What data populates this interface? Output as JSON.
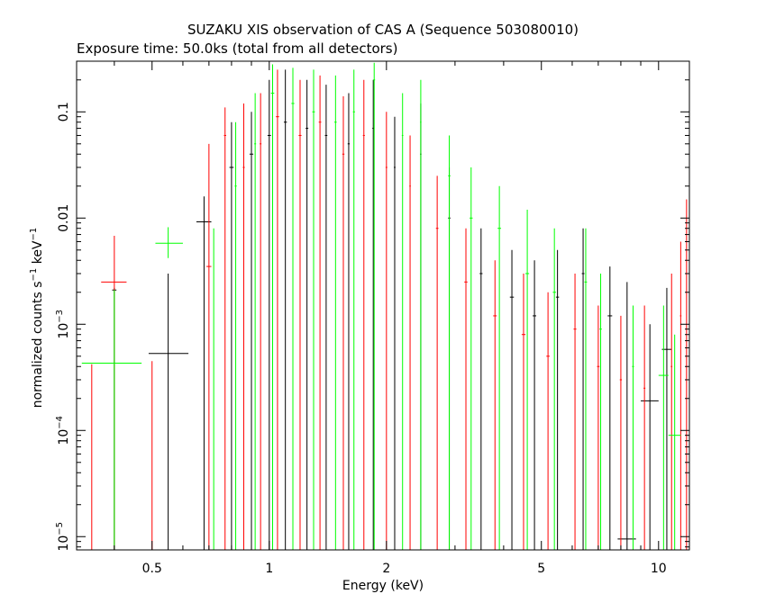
{
  "chart_data": {
    "type": "scatter",
    "title": "SUZAKU XIS observation of CAS A (Sequence 503080010)",
    "subtitle": "Exposure time: 50.0ks (total from all detectors)",
    "xlabel": "Energy (keV)",
    "ylabel": "normalized counts s",
    "ylabel_sup1": "−1",
    "ylabel_mid": " keV",
    "ylabel_sup2": "−1",
    "x_scale": "log",
    "y_scale": "log",
    "xlim": [
      0.32,
      12.0
    ],
    "ylim": [
      7.5e-06,
      0.3
    ],
    "x_ticks": [
      {
        "value": 0.5,
        "label": "0.5"
      },
      {
        "value": 1,
        "label": "1"
      },
      {
        "value": 2,
        "label": "2"
      },
      {
        "value": 5,
        "label": "5"
      },
      {
        "value": 10,
        "label": "10"
      }
    ],
    "y_ticks": [
      {
        "value": 0.1,
        "base": "0.1",
        "exp": ""
      },
      {
        "value": 0.01,
        "base": "0.01",
        "exp": ""
      },
      {
        "value": 0.001,
        "base": "10",
        "exp": "−3"
      },
      {
        "value": 0.0001,
        "base": "10",
        "exp": "−4"
      },
      {
        "value": 1e-05,
        "base": "10",
        "exp": "−5"
      }
    ],
    "grid": false,
    "colors": {
      "black": "#000000",
      "red": "#ff0000",
      "green": "#00ff00"
    },
    "series": [
      {
        "color": "#000000",
        "points": [
          {
            "x": 0.4,
            "y": 0.0021,
            "xlo": 0.395,
            "xhi": 0.405,
            "ylo": 7.5e-06,
            "yhi": 0.0022
          },
          {
            "x": 0.55,
            "y": 0.00053,
            "xlo": 0.49,
            "xhi": 0.62,
            "ylo": 7.5e-06,
            "yhi": 0.003
          },
          {
            "x": 0.68,
            "y": 0.0092,
            "xlo": 0.65,
            "xhi": 0.71,
            "ylo": 7.5e-06,
            "yhi": 0.016
          },
          {
            "x": 0.8,
            "y": 0.03,
            "xlo": 0.79,
            "xhi": 0.81,
            "ylo": 7.5e-06,
            "yhi": 0.08
          },
          {
            "x": 0.9,
            "y": 0.04,
            "xlo": 0.89,
            "xhi": 0.91,
            "ylo": 7.5e-06,
            "yhi": 0.1
          },
          {
            "x": 1.0,
            "y": 0.06,
            "xlo": 0.99,
            "xhi": 1.01,
            "ylo": 7.5e-06,
            "yhi": 0.2
          },
          {
            "x": 1.1,
            "y": 0.08,
            "xlo": 1.09,
            "xhi": 1.11,
            "ylo": 7.5e-06,
            "yhi": 0.25
          },
          {
            "x": 1.25,
            "y": 0.07,
            "xlo": 1.24,
            "xhi": 1.26,
            "ylo": 7.5e-06,
            "yhi": 0.2
          },
          {
            "x": 1.4,
            "y": 0.06,
            "xlo": 1.39,
            "xhi": 1.41,
            "ylo": 7.5e-06,
            "yhi": 0.18
          },
          {
            "x": 1.6,
            "y": 0.05,
            "xlo": 1.59,
            "xhi": 1.61,
            "ylo": 7.5e-06,
            "yhi": 0.15
          },
          {
            "x": 1.85,
            "y": 0.07,
            "xlo": 1.84,
            "xhi": 1.86,
            "ylo": 7.5e-06,
            "yhi": 0.2
          },
          {
            "x": 2.1,
            "y": 0.03,
            "xlo": 2.09,
            "xhi": 2.11,
            "ylo": 7.5e-06,
            "yhi": 0.09
          },
          {
            "x": 2.45,
            "y": 0.04,
            "xlo": 2.44,
            "xhi": 2.46,
            "ylo": 7.5e-06,
            "yhi": 0.12
          },
          {
            "x": 2.9,
            "y": 0.01,
            "xlo": 2.88,
            "xhi": 2.92,
            "ylo": 7.5e-06,
            "yhi": 0.03
          },
          {
            "x": 3.5,
            "y": 0.003,
            "xlo": 3.47,
            "xhi": 3.53,
            "ylo": 7.5e-06,
            "yhi": 0.008
          },
          {
            "x": 4.2,
            "y": 0.0018,
            "xlo": 4.15,
            "xhi": 4.25,
            "ylo": 7.5e-06,
            "yhi": 0.005
          },
          {
            "x": 4.8,
            "y": 0.0012,
            "xlo": 4.75,
            "xhi": 4.85,
            "ylo": 7.5e-06,
            "yhi": 0.004
          },
          {
            "x": 5.5,
            "y": 0.0018,
            "xlo": 5.45,
            "xhi": 5.55,
            "ylo": 7.5e-06,
            "yhi": 0.005
          },
          {
            "x": 6.4,
            "y": 0.003,
            "xlo": 6.35,
            "xhi": 6.45,
            "ylo": 7.5e-06,
            "yhi": 0.008
          },
          {
            "x": 7.5,
            "y": 0.0012,
            "xlo": 7.4,
            "xhi": 7.6,
            "ylo": 7.5e-06,
            "yhi": 0.0035
          },
          {
            "x": 8.3,
            "y": 9.5e-06,
            "xlo": 7.85,
            "xhi": 8.75,
            "ylo": 7.5e-06,
            "yhi": 0.0025
          },
          {
            "x": 9.5,
            "y": 0.00019,
            "xlo": 9.0,
            "xhi": 10.0,
            "ylo": 7.5e-06,
            "yhi": 0.001
          },
          {
            "x": 10.5,
            "y": 0.00058,
            "xlo": 10.2,
            "xhi": 10.8,
            "ylo": 7.5e-06,
            "yhi": 0.0022
          }
        ]
      },
      {
        "color": "#ff0000",
        "points": [
          {
            "x": 0.35,
            "y": 7.5e-06,
            "xlo": 0.349,
            "xhi": 0.351,
            "ylo": 7.5e-06,
            "yhi": 0.00042
          },
          {
            "x": 0.4,
            "y": 0.0025,
            "xlo": 0.37,
            "xhi": 0.43,
            "ylo": 7.5e-06,
            "yhi": 0.0068
          },
          {
            "x": 0.5,
            "y": 7.5e-06,
            "xlo": 0.499,
            "xhi": 0.501,
            "ylo": 7.5e-06,
            "yhi": 0.00045
          },
          {
            "x": 0.7,
            "y": 0.0035,
            "xlo": 0.69,
            "xhi": 0.71,
            "ylo": 7.5e-06,
            "yhi": 0.05
          },
          {
            "x": 0.77,
            "y": 0.06,
            "xlo": 0.765,
            "xhi": 0.775,
            "ylo": 7.5e-06,
            "yhi": 0.11
          },
          {
            "x": 0.86,
            "y": 0.03,
            "xlo": 0.855,
            "xhi": 0.865,
            "ylo": 7.5e-06,
            "yhi": 0.12
          },
          {
            "x": 0.95,
            "y": 0.05,
            "xlo": 0.945,
            "xhi": 0.955,
            "ylo": 7.5e-06,
            "yhi": 0.15
          },
          {
            "x": 1.05,
            "y": 0.09,
            "xlo": 1.04,
            "xhi": 1.06,
            "ylo": 7.5e-06,
            "yhi": 0.25
          },
          {
            "x": 1.2,
            "y": 0.06,
            "xlo": 1.19,
            "xhi": 1.21,
            "ylo": 7.5e-06,
            "yhi": 0.2
          },
          {
            "x": 1.35,
            "y": 0.08,
            "xlo": 1.34,
            "xhi": 1.36,
            "ylo": 7.5e-06,
            "yhi": 0.22
          },
          {
            "x": 1.55,
            "y": 0.04,
            "xlo": 1.54,
            "xhi": 1.56,
            "ylo": 7.5e-06,
            "yhi": 0.14
          },
          {
            "x": 1.75,
            "y": 0.06,
            "xlo": 1.74,
            "xhi": 1.76,
            "ylo": 7.5e-06,
            "yhi": 0.2
          },
          {
            "x": 2.0,
            "y": 0.03,
            "xlo": 1.99,
            "xhi": 2.01,
            "ylo": 7.5e-06,
            "yhi": 0.1
          },
          {
            "x": 2.3,
            "y": 0.02,
            "xlo": 2.29,
            "xhi": 2.31,
            "ylo": 7.5e-06,
            "yhi": 0.06
          },
          {
            "x": 2.7,
            "y": 0.008,
            "xlo": 2.68,
            "xhi": 2.72,
            "ylo": 7.5e-06,
            "yhi": 0.025
          },
          {
            "x": 3.2,
            "y": 0.0025,
            "xlo": 3.17,
            "xhi": 3.23,
            "ylo": 7.5e-06,
            "yhi": 0.008
          },
          {
            "x": 3.8,
            "y": 0.0012,
            "xlo": 3.76,
            "xhi": 3.84,
            "ylo": 7.5e-06,
            "yhi": 0.004
          },
          {
            "x": 4.5,
            "y": 0.0008,
            "xlo": 4.45,
            "xhi": 4.55,
            "ylo": 7.5e-06,
            "yhi": 0.003
          },
          {
            "x": 5.2,
            "y": 0.0005,
            "xlo": 5.15,
            "xhi": 5.25,
            "ylo": 7.5e-06,
            "yhi": 0.002
          },
          {
            "x": 6.1,
            "y": 0.0009,
            "xlo": 6.05,
            "xhi": 6.15,
            "ylo": 7.5e-06,
            "yhi": 0.003
          },
          {
            "x": 7.0,
            "y": 0.0004,
            "xlo": 6.95,
            "xhi": 7.05,
            "ylo": 7.5e-06,
            "yhi": 0.0015
          },
          {
            "x": 8.0,
            "y": 0.0003,
            "xlo": 7.95,
            "xhi": 8.05,
            "ylo": 7.5e-06,
            "yhi": 0.0012
          },
          {
            "x": 9.2,
            "y": 0.00025,
            "xlo": 9.15,
            "xhi": 9.25,
            "ylo": 7.5e-06,
            "yhi": 0.0015
          },
          {
            "x": 10.8,
            "y": 0.0004,
            "xlo": 10.75,
            "xhi": 10.85,
            "ylo": 7.5e-06,
            "yhi": 0.003
          },
          {
            "x": 11.4,
            "y": 0.0012,
            "xlo": 11.35,
            "xhi": 11.45,
            "ylo": 7.5e-06,
            "yhi": 0.006
          },
          {
            "x": 11.8,
            "y": 0.003,
            "xlo": 11.75,
            "xhi": 11.85,
            "ylo": 7.5e-06,
            "yhi": 0.015
          }
        ]
      },
      {
        "color": "#00ff00",
        "points": [
          {
            "x": 0.4,
            "y": 0.00043,
            "xlo": 0.33,
            "xhi": 0.47,
            "ylo": 7.5e-06,
            "yhi": 0.0021
          },
          {
            "x": 0.55,
            "y": 0.0058,
            "xlo": 0.51,
            "xhi": 0.6,
            "ylo": 0.0042,
            "yhi": 0.0082
          },
          {
            "x": 0.72,
            "y": 7.5e-06,
            "xlo": 0.715,
            "xhi": 0.725,
            "ylo": 7.5e-06,
            "yhi": 0.008
          },
          {
            "x": 0.82,
            "y": 0.02,
            "xlo": 0.815,
            "xhi": 0.825,
            "ylo": 7.5e-06,
            "yhi": 0.08
          },
          {
            "x": 0.92,
            "y": 0.05,
            "xlo": 0.915,
            "xhi": 0.925,
            "ylo": 7.5e-06,
            "yhi": 0.15
          },
          {
            "x": 1.02,
            "y": 0.15,
            "xlo": 1.01,
            "xhi": 1.03,
            "ylo": 7.5e-06,
            "yhi": 0.28
          },
          {
            "x": 1.15,
            "y": 0.12,
            "xlo": 1.14,
            "xhi": 1.16,
            "ylo": 7.5e-06,
            "yhi": 0.26
          },
          {
            "x": 1.3,
            "y": 0.1,
            "xlo": 1.29,
            "xhi": 1.31,
            "ylo": 7.5e-06,
            "yhi": 0.25
          },
          {
            "x": 1.48,
            "y": 0.08,
            "xlo": 1.47,
            "xhi": 1.49,
            "ylo": 7.5e-06,
            "yhi": 0.22
          },
          {
            "x": 1.65,
            "y": 0.1,
            "xlo": 1.64,
            "xhi": 1.66,
            "ylo": 7.5e-06,
            "yhi": 0.25
          },
          {
            "x": 1.86,
            "y": 0.2,
            "xlo": 1.85,
            "xhi": 1.87,
            "ylo": 7.5e-06,
            "yhi": 0.29
          },
          {
            "x": 2.2,
            "y": 0.06,
            "xlo": 2.19,
            "xhi": 2.21,
            "ylo": 7.5e-06,
            "yhi": 0.15
          },
          {
            "x": 2.45,
            "y": 0.08,
            "xlo": 2.44,
            "xhi": 2.46,
            "ylo": 7.5e-06,
            "yhi": 0.2
          },
          {
            "x": 2.9,
            "y": 0.025,
            "xlo": 2.88,
            "xhi": 2.92,
            "ylo": 7.5e-06,
            "yhi": 0.06
          },
          {
            "x": 3.3,
            "y": 0.01,
            "xlo": 3.27,
            "xhi": 3.33,
            "ylo": 7.5e-06,
            "yhi": 0.03
          },
          {
            "x": 3.9,
            "y": 0.008,
            "xlo": 3.86,
            "xhi": 3.94,
            "ylo": 7.5e-06,
            "yhi": 0.02
          },
          {
            "x": 4.6,
            "y": 0.003,
            "xlo": 4.55,
            "xhi": 4.65,
            "ylo": 7.5e-06,
            "yhi": 0.012
          },
          {
            "x": 5.4,
            "y": 0.002,
            "xlo": 5.35,
            "xhi": 5.45,
            "ylo": 7.5e-06,
            "yhi": 0.008
          },
          {
            "x": 6.5,
            "y": 0.0025,
            "xlo": 6.45,
            "xhi": 6.55,
            "ylo": 7.5e-06,
            "yhi": 0.008
          },
          {
            "x": 7.1,
            "y": 0.0009,
            "xlo": 7.05,
            "xhi": 7.15,
            "ylo": 7.5e-06,
            "yhi": 0.003
          },
          {
            "x": 8.6,
            "y": 0.0004,
            "xlo": 8.55,
            "xhi": 8.65,
            "ylo": 7.5e-06,
            "yhi": 0.0015
          },
          {
            "x": 10.3,
            "y": 0.00033,
            "xlo": 10.0,
            "xhi": 10.6,
            "ylo": 7.5e-06,
            "yhi": 0.0015
          },
          {
            "x": 11.0,
            "y": 9e-05,
            "xlo": 10.6,
            "xhi": 11.4,
            "ylo": 7.5e-06,
            "yhi": 0.0008
          }
        ]
      }
    ]
  }
}
